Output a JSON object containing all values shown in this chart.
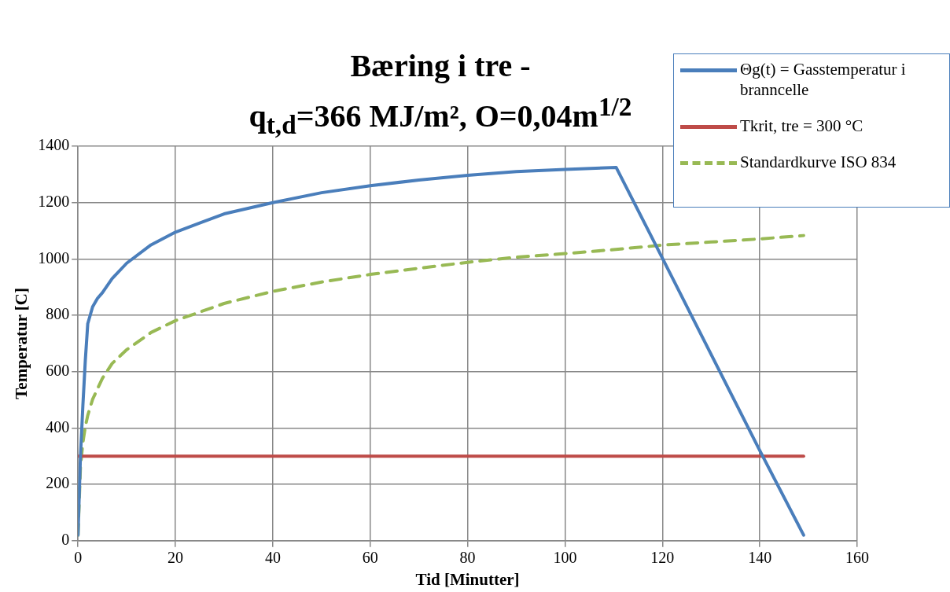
{
  "chart_data": {
    "type": "line",
    "title": "Bæring i tre -\nq$_{t,d}$=366 MJ/m², O=0,04m$^{1/2}$",
    "xlabel": "Tid [Minutter]",
    "ylabel": "Temperatur [C]",
    "xlim": [
      0,
      160
    ],
    "xticks": [
      0,
      20,
      40,
      60,
      80,
      100,
      120,
      140,
      160
    ],
    "ylim": [
      0,
      1400
    ],
    "yticks": [
      0,
      200,
      400,
      600,
      800,
      1000,
      1200,
      1400
    ],
    "grid": true,
    "legend": "top right",
    "marker": "none",
    "series": [
      {
        "name": "Θg(t) = Gasstemperatur i branncelle",
        "color": "#4a7ebb",
        "line_style": "solid",
        "x": [
          0,
          0.5,
          1,
          1.5,
          2,
          2.5,
          3,
          4,
          5,
          7,
          10,
          15,
          20,
          30,
          40,
          50,
          60,
          70,
          80,
          90,
          100,
          110.5,
          120,
          140,
          149
        ],
        "values": [
          20,
          300,
          480,
          640,
          770,
          800,
          830,
          860,
          880,
          930,
          985,
          1050,
          1095,
          1160,
          1200,
          1235,
          1260,
          1280,
          1297,
          1310,
          1318,
          1325,
          1003,
          320,
          20
        ]
      },
      {
        "name": "Tkrit, tre = 300 °C",
        "color": "#be4b48",
        "line_style": "solid",
        "x": [
          0,
          149
        ],
        "values": [
          300,
          300
        ]
      },
      {
        "name": "Standardkurve ISO 834",
        "color": "#98b954",
        "line_style": "dashed",
        "x": [
          0,
          0.5,
          1,
          1.5,
          2,
          3,
          5,
          7,
          10,
          15,
          20,
          30,
          40,
          50,
          60,
          70,
          80,
          90,
          100,
          110,
          120,
          130,
          140,
          149
        ],
        "values": [
          20,
          261,
          349,
          404,
          445,
          502,
          576,
          629,
          678,
          739,
          781,
          842,
          885,
          918,
          945,
          967,
          988,
          1006,
          1019,
          1033,
          1049,
          1060,
          1071,
          1083
        ]
      }
    ]
  }
}
